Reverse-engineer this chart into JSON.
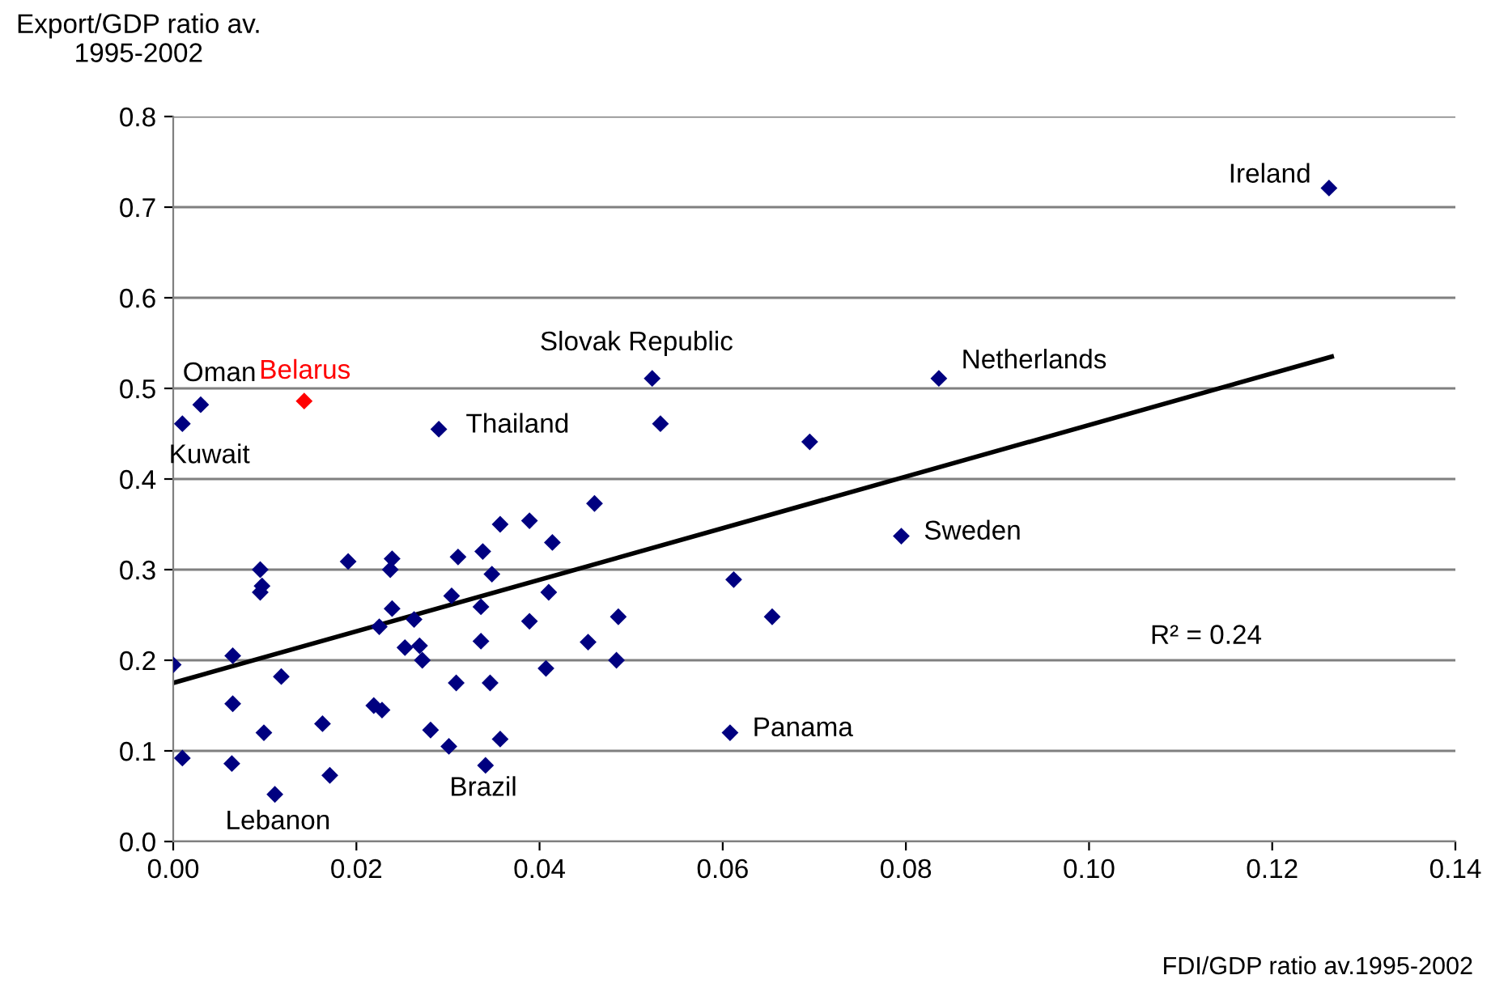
{
  "chart_data": {
    "type": "scatter",
    "xlabel": "FDI/GDP ratio av.1995-2002",
    "ylabel": "Export/GDP ratio av.\n1995-2002",
    "xlim": [
      0,
      0.14
    ],
    "ylim": [
      0,
      0.8
    ],
    "xticks": [
      {
        "value": 0,
        "label": "0.00"
      },
      {
        "value": 0.02,
        "label": "0.02"
      },
      {
        "value": 0.04,
        "label": "0.04"
      },
      {
        "value": 0.06,
        "label": "0.06"
      },
      {
        "value": 0.08,
        "label": "0.08"
      },
      {
        "value": 0.1,
        "label": "0.10"
      },
      {
        "value": 0.12,
        "label": "0.12"
      },
      {
        "value": 0.14,
        "label": "0.14"
      }
    ],
    "yticks": [
      {
        "value": 0,
        "label": "0.0"
      },
      {
        "value": 0.1,
        "label": "0.1"
      },
      {
        "value": 0.2,
        "label": "0.2"
      },
      {
        "value": 0.3,
        "label": "0.3"
      },
      {
        "value": 0.4,
        "label": "0.4"
      },
      {
        "value": 0.5,
        "label": "0.5"
      },
      {
        "value": 0.6,
        "label": "0.6"
      },
      {
        "value": 0.7,
        "label": "0.7"
      },
      {
        "value": 0.8,
        "label": "0.8"
      }
    ],
    "grid": "y",
    "series": [
      {
        "marker": "diamond",
        "color": "#000080",
        "x": [
          0.0,
          0.001,
          0.001,
          0.003,
          0.0065,
          0.0065,
          0.0064,
          0.0095,
          0.0097,
          0.0095,
          0.0118,
          0.0099,
          0.0111,
          0.0163,
          0.0171,
          0.0191,
          0.0239,
          0.0237,
          0.0239,
          0.0225,
          0.0219,
          0.0228,
          0.0253,
          0.0263,
          0.0269,
          0.0272,
          0.0281,
          0.0301,
          0.0304,
          0.0311,
          0.0309,
          0.0338,
          0.0348,
          0.0336,
          0.0336,
          0.0346,
          0.0357,
          0.0341,
          0.0357,
          0.0389,
          0.0414,
          0.041,
          0.0389,
          0.0407,
          0.0453,
          0.0484,
          0.0486,
          0.046,
          0.0612,
          0.0654,
          0.0608,
          0.0523,
          0.0532,
          0.0695,
          0.0795,
          0.0836,
          0.1262,
          0.029
        ],
        "values": [
          0.195,
          0.092,
          0.461,
          0.482,
          0.205,
          0.152,
          0.086,
          0.3,
          0.282,
          0.275,
          0.182,
          0.12,
          0.052,
          0.13,
          0.073,
          0.309,
          0.312,
          0.3,
          0.257,
          0.237,
          0.15,
          0.145,
          0.214,
          0.245,
          0.216,
          0.2,
          0.123,
          0.105,
          0.271,
          0.314,
          0.175,
          0.32,
          0.295,
          0.259,
          0.221,
          0.175,
          0.113,
          0.084,
          0.35,
          0.354,
          0.33,
          0.275,
          0.243,
          0.191,
          0.22,
          0.2,
          0.248,
          0.373,
          0.289,
          0.248,
          0.12,
          0.511,
          0.461,
          0.441,
          0.337,
          0.511,
          0.721,
          0.455
        ]
      },
      {
        "marker": "diamond",
        "name": "Belarus",
        "color": "#ff0000",
        "x": [
          0.0143
        ],
        "values": [
          0.486
        ]
      },
      {
        "type": "line",
        "marker": "none",
        "color": "#000000",
        "x": [
          0,
          0.1265
        ],
        "values": [
          0.175,
          0.535
        ]
      }
    ],
    "annotations": [
      {
        "text": "Kuwait",
        "x": 0.001,
        "y": 0.461
      },
      {
        "text": "Oman",
        "x": 0.003,
        "y": 0.482
      },
      {
        "text": "Thailand",
        "x": 0.029,
        "y": 0.455
      },
      {
        "text": "Slovak Republic",
        "x": 0.0523,
        "y": 0.511
      },
      {
        "text": "Netherlands",
        "x": 0.0836,
        "y": 0.511
      },
      {
        "text": "Ireland",
        "x": 0.1262,
        "y": 0.721
      },
      {
        "text": "Sweden",
        "x": 0.0795,
        "y": 0.337
      },
      {
        "text": "Panama",
        "x": 0.0608,
        "y": 0.12
      },
      {
        "text": "Brazil",
        "x": 0.0341,
        "y": 0.084
      },
      {
        "text": "Lebanon",
        "x": 0.0111,
        "y": 0.052
      },
      "R² = 0.24"
    ]
  }
}
